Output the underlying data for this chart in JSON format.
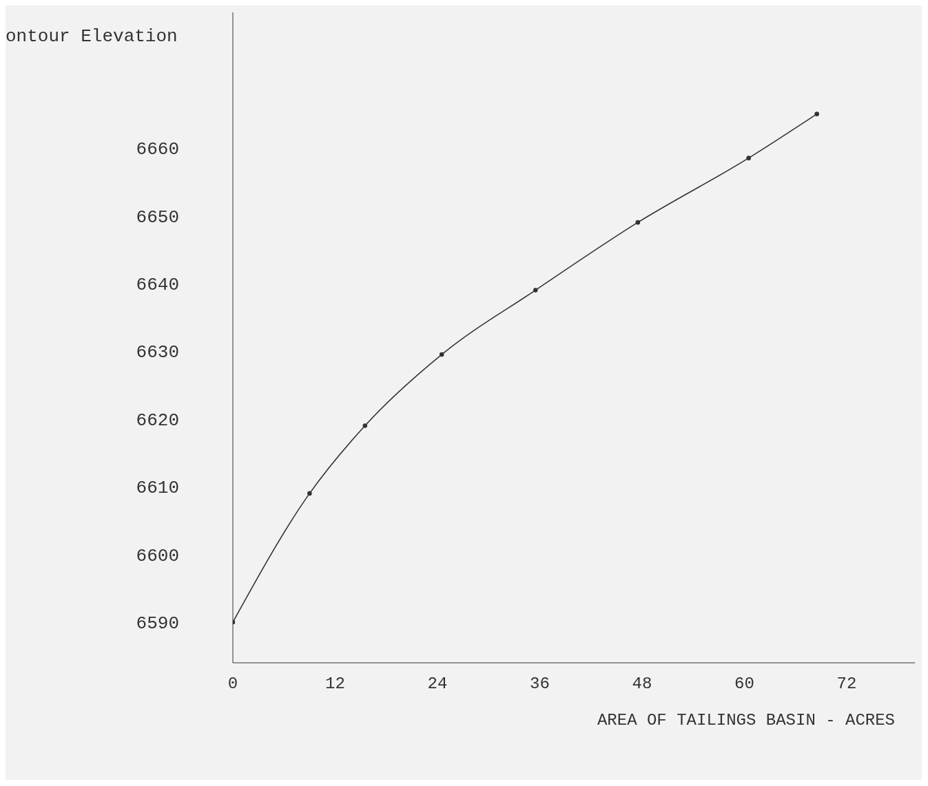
{
  "chart_data": {
    "type": "line",
    "ylabel": "ontour Elevation",
    "xlabel": "AREA OF TAILINGS BASIN - ACRES",
    "x": [
      0,
      9,
      15.5,
      24.5,
      35.5,
      47.5,
      60.5,
      68.5
    ],
    "series": [
      {
        "color": "#333333",
        "values": [
          6590,
          6609,
          6619,
          6629.5,
          6639,
          6649,
          6658.5,
          6665
        ]
      }
    ],
    "xlim": [
      0,
      80
    ],
    "xticks": [
      0,
      12,
      24,
      36,
      48,
      60,
      72
    ],
    "ylim": [
      6584,
      6680
    ],
    "yticks": [
      6590,
      6600,
      6610,
      6620,
      6630,
      6640,
      6650,
      6660
    ],
    "marker": "circle",
    "line_style": "solid"
  }
}
